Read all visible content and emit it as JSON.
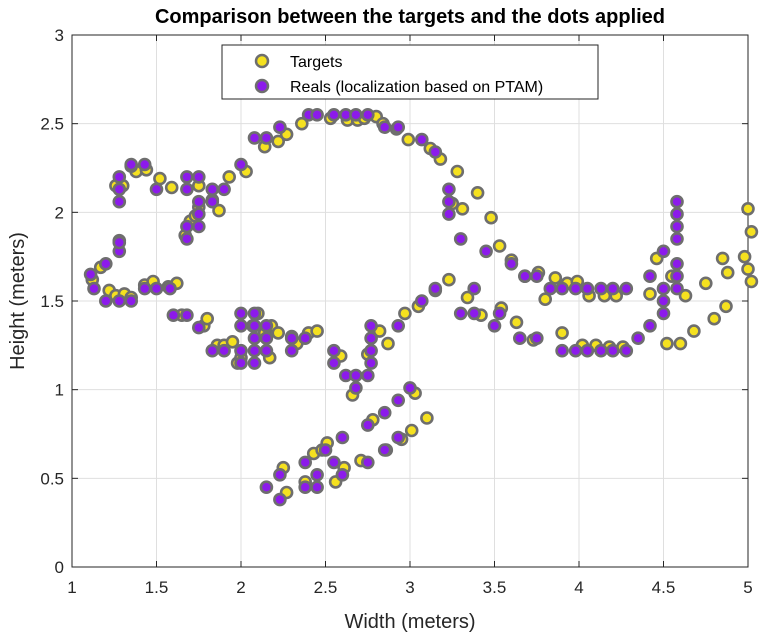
{
  "chart_data": {
    "type": "scatter",
    "title": "Comparison between the targets and the dots applied",
    "xlabel": "Width (meters)",
    "ylabel": "Height (meters)",
    "xlim": [
      1,
      5
    ],
    "ylim": [
      0,
      3
    ],
    "xticks": [
      1,
      1.5,
      2,
      2.5,
      3,
      3.5,
      4,
      4.5,
      5
    ],
    "yticks": [
      0,
      0.5,
      1,
      1.5,
      2,
      2.5,
      3
    ],
    "xtick_labels": [
      "1",
      "1.5",
      "2",
      "2.5",
      "3",
      "3.5",
      "4",
      "4.5",
      "5"
    ],
    "ytick_labels": [
      "0",
      "0.5",
      "1",
      "1.5",
      "2",
      "2.5",
      "3"
    ],
    "grid": true,
    "legend_position": "top-center",
    "series": [
      {
        "name": "Targets",
        "fill_color": "#f5e11f",
        "edge_color": "#6e6e6e",
        "points": [
          [
            1.12,
            1.62
          ],
          [
            1.17,
            1.69
          ],
          [
            1.22,
            1.56
          ],
          [
            1.26,
            1.53
          ],
          [
            1.28,
            1.84
          ],
          [
            1.31,
            1.54
          ],
          [
            1.35,
            1.52
          ],
          [
            1.38,
            2.23
          ],
          [
            1.43,
            1.59
          ],
          [
            1.44,
            2.24
          ],
          [
            1.48,
            1.61
          ],
          [
            1.52,
            2.19
          ],
          [
            1.57,
            1.58
          ],
          [
            1.59,
            2.14
          ],
          [
            1.62,
            1.6
          ],
          [
            1.65,
            1.42
          ],
          [
            1.67,
            1.87
          ],
          [
            1.7,
            1.95
          ],
          [
            1.73,
            1.98
          ],
          [
            1.75,
            2.03
          ],
          [
            1.78,
            1.36
          ],
          [
            1.8,
            1.4
          ],
          [
            1.83,
            2.07
          ],
          [
            1.86,
            1.25
          ],
          [
            1.87,
            2.01
          ],
          [
            1.9,
            1.25
          ],
          [
            1.93,
            2.2
          ],
          [
            1.95,
            1.27
          ],
          [
            1.98,
            1.15
          ],
          [
            2.0,
            1.18
          ],
          [
            2.03,
            2.23
          ],
          [
            2.07,
            1.36
          ],
          [
            2.1,
            1.43
          ],
          [
            2.14,
            1.32
          ],
          [
            2.14,
            2.37
          ],
          [
            2.17,
            1.18
          ],
          [
            2.18,
            1.36
          ],
          [
            2.22,
            1.32
          ],
          [
            2.22,
            2.4
          ],
          [
            2.25,
            0.56
          ],
          [
            2.27,
            0.42
          ],
          [
            2.27,
            2.44
          ],
          [
            2.3,
            1.3
          ],
          [
            2.33,
            1.26
          ],
          [
            2.36,
            2.5
          ],
          [
            2.38,
            0.48
          ],
          [
            2.4,
            1.32
          ],
          [
            2.43,
            0.64
          ],
          [
            2.45,
            1.33
          ],
          [
            2.48,
            0.66
          ],
          [
            2.51,
            0.7
          ],
          [
            2.53,
            2.53
          ],
          [
            2.56,
            0.48
          ],
          [
            2.59,
            1.19
          ],
          [
            2.61,
            0.56
          ],
          [
            2.63,
            2.52
          ],
          [
            2.66,
            0.97
          ],
          [
            2.69,
            2.52
          ],
          [
            2.71,
            0.6
          ],
          [
            2.73,
            2.53
          ],
          [
            2.75,
            1.2
          ],
          [
            2.78,
            0.83
          ],
          [
            2.8,
            2.54
          ],
          [
            2.82,
            1.33
          ],
          [
            2.84,
            2.5
          ],
          [
            2.86,
            0.66
          ],
          [
            2.87,
            1.26
          ],
          [
            2.92,
            2.47
          ],
          [
            2.95,
            0.72
          ],
          [
            2.97,
            1.43
          ],
          [
            2.99,
            2.41
          ],
          [
            3.01,
            0.77
          ],
          [
            3.03,
            0.98
          ],
          [
            3.05,
            1.47
          ],
          [
            3.1,
            0.84
          ],
          [
            3.12,
            2.36
          ],
          [
            3.15,
            1.56
          ],
          [
            3.18,
            2.3
          ],
          [
            3.23,
            1.62
          ],
          [
            3.25,
            2.05
          ],
          [
            3.28,
            2.23
          ],
          [
            3.31,
            2.02
          ],
          [
            3.34,
            1.52
          ],
          [
            3.4,
            2.11
          ],
          [
            3.42,
            1.42
          ],
          [
            3.48,
            1.97
          ],
          [
            3.53,
            1.81
          ],
          [
            3.54,
            1.46
          ],
          [
            3.6,
            1.73
          ],
          [
            3.63,
            1.38
          ],
          [
            3.68,
            1.64
          ],
          [
            3.73,
            1.28
          ],
          [
            3.76,
            1.66
          ],
          [
            3.8,
            1.51
          ],
          [
            3.86,
            1.63
          ],
          [
            3.9,
            1.32
          ],
          [
            3.93,
            1.6
          ],
          [
            3.99,
            1.61
          ],
          [
            4.02,
            1.25
          ],
          [
            4.06,
            1.53
          ],
          [
            4.1,
            1.25
          ],
          [
            4.15,
            1.53
          ],
          [
            4.18,
            1.24
          ],
          [
            4.22,
            1.53
          ],
          [
            4.26,
            1.24
          ],
          [
            4.42,
            1.54
          ],
          [
            4.46,
            1.74
          ],
          [
            4.52,
            1.26
          ],
          [
            4.55,
            1.64
          ],
          [
            4.6,
            1.26
          ],
          [
            4.63,
            1.53
          ],
          [
            4.68,
            1.33
          ],
          [
            4.75,
            1.6
          ],
          [
            4.8,
            1.4
          ],
          [
            4.85,
            1.74
          ],
          [
            4.87,
            1.47
          ],
          [
            4.88,
            1.66
          ],
          [
            4.98,
            1.75
          ],
          [
            5.0,
            1.68
          ],
          [
            5.0,
            2.02
          ],
          [
            5.02,
            1.89
          ],
          [
            5.02,
            1.61
          ],
          [
            1.26,
            2.15
          ],
          [
            1.3,
            2.15
          ],
          [
            1.35,
            2.26
          ],
          [
            1.75,
            2.15
          ]
        ]
      },
      {
        "name": "Reals (localization based on PTAM)",
        "fill_color": "#8c1aeb",
        "edge_color": "#6e6e6e",
        "points": [
          [
            1.11,
            1.65
          ],
          [
            1.13,
            1.57
          ],
          [
            1.2,
            1.71
          ],
          [
            1.2,
            1.5
          ],
          [
            1.28,
            1.5
          ],
          [
            1.28,
            1.78
          ],
          [
            1.28,
            1.83
          ],
          [
            1.28,
            2.06
          ],
          [
            1.28,
            2.13
          ],
          [
            1.28,
            2.2
          ],
          [
            1.35,
            1.5
          ],
          [
            1.35,
            2.27
          ],
          [
            1.43,
            2.27
          ],
          [
            1.43,
            1.57
          ],
          [
            1.5,
            1.57
          ],
          [
            1.5,
            2.13
          ],
          [
            1.58,
            1.57
          ],
          [
            1.6,
            1.42
          ],
          [
            1.68,
            2.2
          ],
          [
            1.68,
            2.13
          ],
          [
            1.68,
            1.92
          ],
          [
            1.68,
            1.85
          ],
          [
            1.68,
            1.42
          ],
          [
            1.75,
            2.2
          ],
          [
            1.75,
            2.06
          ],
          [
            1.75,
            1.99
          ],
          [
            1.75,
            1.92
          ],
          [
            1.75,
            1.35
          ],
          [
            1.83,
            2.06
          ],
          [
            1.83,
            2.13
          ],
          [
            1.83,
            1.22
          ],
          [
            1.9,
            1.22
          ],
          [
            1.9,
            2.13
          ],
          [
            2.0,
            2.27
          ],
          [
            2.0,
            1.43
          ],
          [
            2.0,
            1.36
          ],
          [
            2.0,
            1.22
          ],
          [
            2.0,
            1.15
          ],
          [
            2.08,
            1.43
          ],
          [
            2.08,
            1.36
          ],
          [
            2.08,
            1.29
          ],
          [
            2.08,
            1.22
          ],
          [
            2.08,
            1.15
          ],
          [
            2.08,
            2.42
          ],
          [
            2.15,
            2.42
          ],
          [
            2.15,
            1.36
          ],
          [
            2.15,
            1.29
          ],
          [
            2.15,
            1.22
          ],
          [
            2.15,
            0.45
          ],
          [
            2.23,
            2.48
          ],
          [
            2.23,
            0.52
          ],
          [
            2.23,
            0.38
          ],
          [
            2.3,
            1.29
          ],
          [
            2.3,
            1.22
          ],
          [
            2.38,
            0.59
          ],
          [
            2.38,
            0.45
          ],
          [
            2.38,
            1.29
          ],
          [
            2.4,
            2.55
          ],
          [
            2.45,
            0.52
          ],
          [
            2.45,
            2.55
          ],
          [
            2.45,
            0.45
          ],
          [
            2.5,
            0.66
          ],
          [
            2.55,
            2.55
          ],
          [
            2.55,
            1.22
          ],
          [
            2.55,
            1.15
          ],
          [
            2.55,
            0.59
          ],
          [
            2.6,
            0.52
          ],
          [
            2.6,
            0.73
          ],
          [
            2.62,
            2.55
          ],
          [
            2.62,
            1.08
          ],
          [
            2.68,
            1.01
          ],
          [
            2.68,
            1.08
          ],
          [
            2.68,
            2.55
          ],
          [
            2.75,
            1.08
          ],
          [
            2.75,
            2.55
          ],
          [
            2.75,
            0.59
          ],
          [
            2.75,
            0.8
          ],
          [
            2.77,
            1.15
          ],
          [
            2.77,
            1.22
          ],
          [
            2.77,
            1.29
          ],
          [
            2.77,
            1.36
          ],
          [
            2.85,
            0.66
          ],
          [
            2.85,
            0.87
          ],
          [
            2.85,
            2.48
          ],
          [
            2.93,
            0.94
          ],
          [
            2.93,
            1.36
          ],
          [
            2.93,
            2.48
          ],
          [
            2.93,
            0.73
          ],
          [
            3.0,
            1.01
          ],
          [
            3.07,
            1.5
          ],
          [
            3.07,
            2.41
          ],
          [
            3.15,
            2.34
          ],
          [
            3.15,
            1.57
          ],
          [
            3.23,
            2.13
          ],
          [
            3.23,
            2.06
          ],
          [
            3.23,
            1.99
          ],
          [
            3.3,
            1.43
          ],
          [
            3.3,
            1.85
          ],
          [
            3.38,
            1.43
          ],
          [
            3.38,
            1.57
          ],
          [
            3.45,
            1.78
          ],
          [
            3.5,
            1.36
          ],
          [
            3.53,
            1.43
          ],
          [
            3.6,
            1.71
          ],
          [
            3.65,
            1.29
          ],
          [
            3.68,
            1.64
          ],
          [
            3.75,
            1.29
          ],
          [
            3.75,
            1.64
          ],
          [
            3.83,
            1.57
          ],
          [
            3.9,
            1.22
          ],
          [
            3.9,
            1.57
          ],
          [
            3.98,
            1.57
          ],
          [
            3.98,
            1.22
          ],
          [
            4.05,
            1.22
          ],
          [
            4.05,
            1.57
          ],
          [
            4.13,
            1.22
          ],
          [
            4.13,
            1.57
          ],
          [
            4.2,
            1.22
          ],
          [
            4.2,
            1.57
          ],
          [
            4.28,
            1.22
          ],
          [
            4.28,
            1.57
          ],
          [
            4.35,
            1.29
          ],
          [
            4.42,
            1.64
          ],
          [
            4.42,
            1.36
          ],
          [
            4.5,
            1.43
          ],
          [
            4.5,
            1.5
          ],
          [
            4.5,
            1.57
          ],
          [
            4.5,
            1.78
          ],
          [
            4.58,
            1.71
          ],
          [
            4.58,
            1.64
          ],
          [
            4.58,
            1.57
          ],
          [
            4.58,
            1.85
          ],
          [
            4.58,
            1.92
          ],
          [
            4.58,
            1.99
          ],
          [
            4.58,
            2.06
          ]
        ]
      }
    ]
  }
}
